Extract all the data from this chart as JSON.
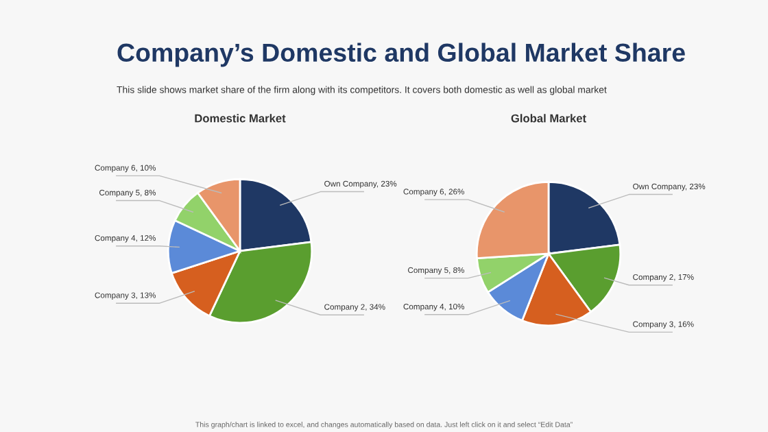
{
  "chart_data": [
    {
      "type": "pie",
      "title": "Domestic Market",
      "categories": [
        "Own Company",
        "Company 2",
        "Company 3",
        "Company 4",
        "Company 5",
        "Company 6"
      ],
      "values": [
        23,
        34,
        13,
        12,
        8,
        10
      ],
      "value_labels": [
        "23%",
        "34%",
        "13%",
        "12%",
        "8%",
        "10%"
      ],
      "colors": [
        "#1f3864",
        "#5a9e2f",
        "#d65f1f",
        "#5b8ad8",
        "#92d26a",
        "#e8956a"
      ],
      "annotations": [
        "Company’s Domestic and Global Market Share",
        "This slide shows market share of the firm along with its competitors. It covers both domestic as well as global market",
        "This graph/chart is linked to excel, and changes automatically based on data. Just left click on it and select “Edit Data”"
      ]
    },
    {
      "type": "pie",
      "title": "Global Market",
      "categories": [
        "Own Company",
        "Company 2",
        "Company 3",
        "Company 4",
        "Company 5",
        "Company 6"
      ],
      "values": [
        23,
        17,
        16,
        10,
        8,
        26
      ],
      "value_labels": [
        "23%",
        "17%",
        "16%",
        "10%",
        "8%",
        "26%"
      ],
      "colors": [
        "#1f3864",
        "#5a9e2f",
        "#d65f1f",
        "#5b8ad8",
        "#92d26a",
        "#e8956a"
      ]
    }
  ]
}
